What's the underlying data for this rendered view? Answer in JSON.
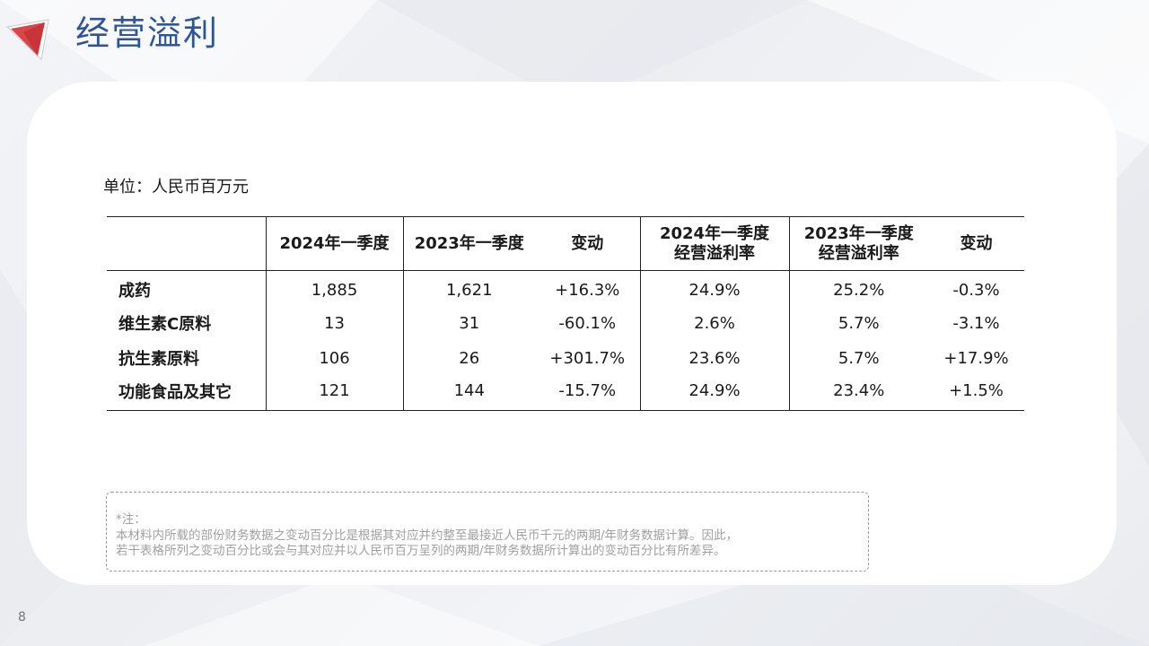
{
  "title": "经营溢利",
  "unit": "单位：人民币百万元",
  "table": {
    "headers": [
      "",
      "2024年一季度",
      "2023年一季度",
      "变动",
      "2024年一季度\n经营溢利率",
      "2023年一季度\n经营溢利率",
      "变动"
    ],
    "rows": [
      [
        "成药",
        "1,885",
        "1,621",
        "+16.3%",
        "24.9%",
        "25.2%",
        "-0.3%"
      ],
      [
        "维生素C原料",
        "13",
        "31",
        "-60.1%",
        "2.6%",
        "5.7%",
        "-3.1%"
      ],
      [
        "抗生素原料",
        "106",
        "26",
        "+301.7%",
        "23.6%",
        "5.7%",
        "+17.9%"
      ],
      [
        "功能食品及其它",
        "121",
        "144",
        "-15.7%",
        "24.9%",
        "23.4%",
        "+1.5%"
      ]
    ]
  },
  "note": {
    "label": "*注：",
    "line1": "本材料内所载的部份财务数据之变动百分比是根据其对应并约整至最接近人民币千元的两期/年财务数据计算。因此，",
    "line2": "若干表格所列之变动百分比或会与其对应并以人民币百万呈列的两期/年财务数据所计算出的变动百分比有所差异。"
  },
  "page_number": "8",
  "colors": {
    "title": "#2f5597",
    "logo_red": "#d9464a",
    "note_text": "#a0a0a0"
  },
  "icons": {
    "logo": "red-triangle-logo"
  }
}
